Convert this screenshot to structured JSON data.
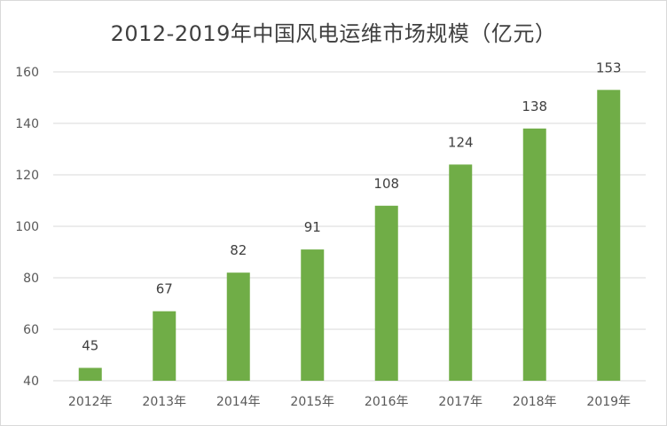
{
  "chart_data": {
    "type": "bar",
    "title": "2012-2019年中国风电运维市场规模（亿元）",
    "categories": [
      "2012年",
      "2013年",
      "2014年",
      "2015年",
      "2016年",
      "2017年",
      "2018年",
      "2019年"
    ],
    "values": [
      45,
      67,
      82,
      91,
      108,
      124,
      138,
      153
    ],
    "ylim": [
      40,
      160
    ],
    "yticks": [
      40,
      60,
      80,
      100,
      120,
      140,
      160
    ],
    "xlabel": "",
    "ylabel": "",
    "grid": true,
    "legend": "none",
    "data_labels": true,
    "bar_color": "#70ad47",
    "grid_color": "#d9d9d9"
  }
}
